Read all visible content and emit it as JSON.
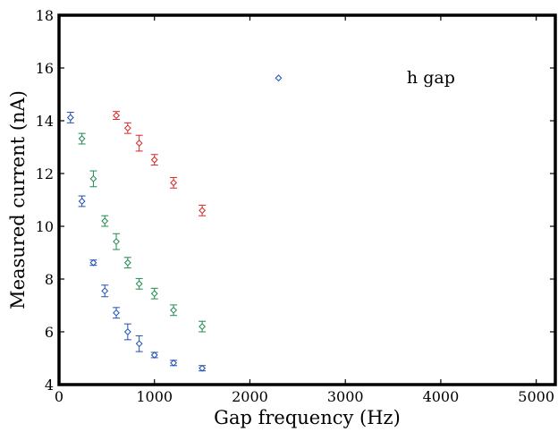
{
  "chart_data": {
    "type": "scatter",
    "title": "",
    "xlabel": "Gap frequency (Hz)",
    "ylabel": "Measured current (nA)",
    "xlim": [
      0,
      5200
    ],
    "ylim": [
      4,
      18
    ],
    "xticks": [
      0,
      1000,
      2000,
      3000,
      4000,
      5000
    ],
    "yticks": [
      4,
      6,
      8,
      10,
      12,
      14,
      16,
      18
    ],
    "grid": false,
    "annotations": [
      {
        "text": "h gap",
        "x": 4000,
        "y": 15.62
      }
    ],
    "series": [
      {
        "color": "#1f4fb4",
        "marker": "diamond",
        "points": [
          {
            "x": 120,
            "y": 14.12,
            "err": 0.2
          },
          {
            "x": 240,
            "y": 10.95,
            "err": 0.2
          },
          {
            "x": 360,
            "y": 8.62,
            "err": 0.1
          },
          {
            "x": 480,
            "y": 7.55,
            "err": 0.22
          },
          {
            "x": 600,
            "y": 6.72,
            "err": 0.2
          },
          {
            "x": 720,
            "y": 6.0,
            "err": 0.3
          },
          {
            "x": 840,
            "y": 5.55,
            "err": 0.3
          },
          {
            "x": 1000,
            "y": 5.12,
            "err": 0.1
          },
          {
            "x": 1200,
            "y": 4.82,
            "err": 0.1
          },
          {
            "x": 1500,
            "y": 4.62,
            "err": 0.1
          },
          {
            "x": 2300,
            "y": 15.62,
            "err": 0
          }
        ]
      },
      {
        "color": "#1e8c4e",
        "marker": "diamond",
        "points": [
          {
            "x": 240,
            "y": 13.32,
            "err": 0.2
          },
          {
            "x": 360,
            "y": 11.8,
            "err": 0.3
          },
          {
            "x": 480,
            "y": 10.2,
            "err": 0.2
          },
          {
            "x": 600,
            "y": 9.42,
            "err": 0.3
          },
          {
            "x": 720,
            "y": 8.62,
            "err": 0.2
          },
          {
            "x": 840,
            "y": 7.82,
            "err": 0.2
          },
          {
            "x": 1000,
            "y": 7.45,
            "err": 0.2
          },
          {
            "x": 1200,
            "y": 6.82,
            "err": 0.2
          },
          {
            "x": 1500,
            "y": 6.2,
            "err": 0.2
          }
        ]
      },
      {
        "color": "#d62728",
        "marker": "diamond",
        "points": [
          {
            "x": 600,
            "y": 14.2,
            "err": 0.15
          },
          {
            "x": 720,
            "y": 13.72,
            "err": 0.2
          },
          {
            "x": 840,
            "y": 13.15,
            "err": 0.3
          },
          {
            "x": 1000,
            "y": 12.52,
            "err": 0.2
          },
          {
            "x": 1200,
            "y": 11.65,
            "err": 0.2
          },
          {
            "x": 1500,
            "y": 10.6,
            "err": 0.2
          }
        ]
      }
    ]
  }
}
